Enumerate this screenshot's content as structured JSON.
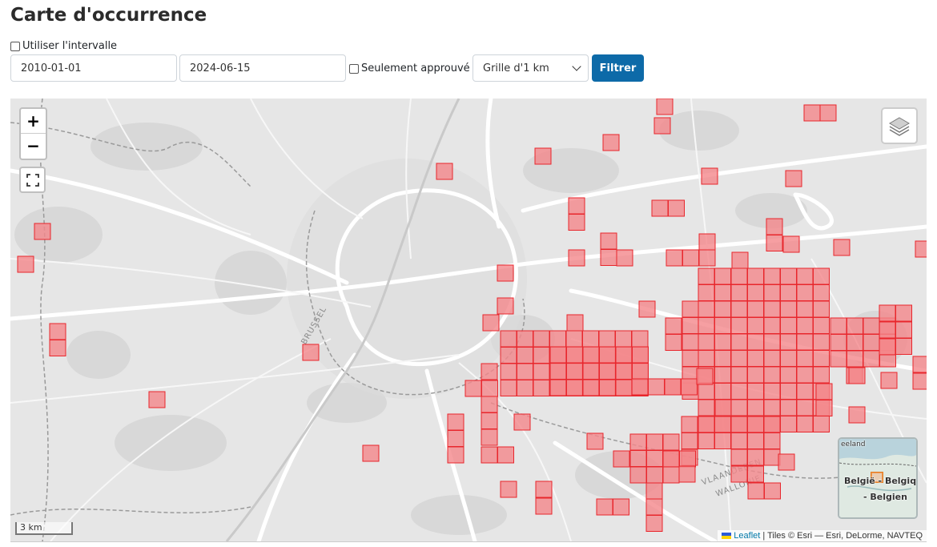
{
  "page": {
    "title": "Carte d'occurrence"
  },
  "filters": {
    "use_interval_label": "Utiliser l'intervalle",
    "date_from": "2010-01-01",
    "date_to": "2024-06-15",
    "only_approved_label": "Seulement approuvé",
    "grid_select": "Grille d'1 km",
    "filter_button": "Filtrer"
  },
  "map": {
    "zoom_in": "+",
    "zoom_out": "−",
    "fullscreen_icon": "fullscreen-icon",
    "layers_icon": "layers-icon",
    "scale_label": "3 km",
    "attribution_link": "Leaflet",
    "attribution_text": " | Tiles © Esri — Esri, DeLorme, NAVTEQ",
    "minimap": {
      "label_1": "België - Belgique",
      "label_2": "- Belgien",
      "label_3": "eeland"
    },
    "labels": {
      "brussel": "BRUSSEL",
      "vlaanderen": "VLAANDEREN",
      "wallonie": "WALLONIE"
    },
    "cell_fill": "#f4878b",
    "cell_stroke": "#e8262c"
  }
}
